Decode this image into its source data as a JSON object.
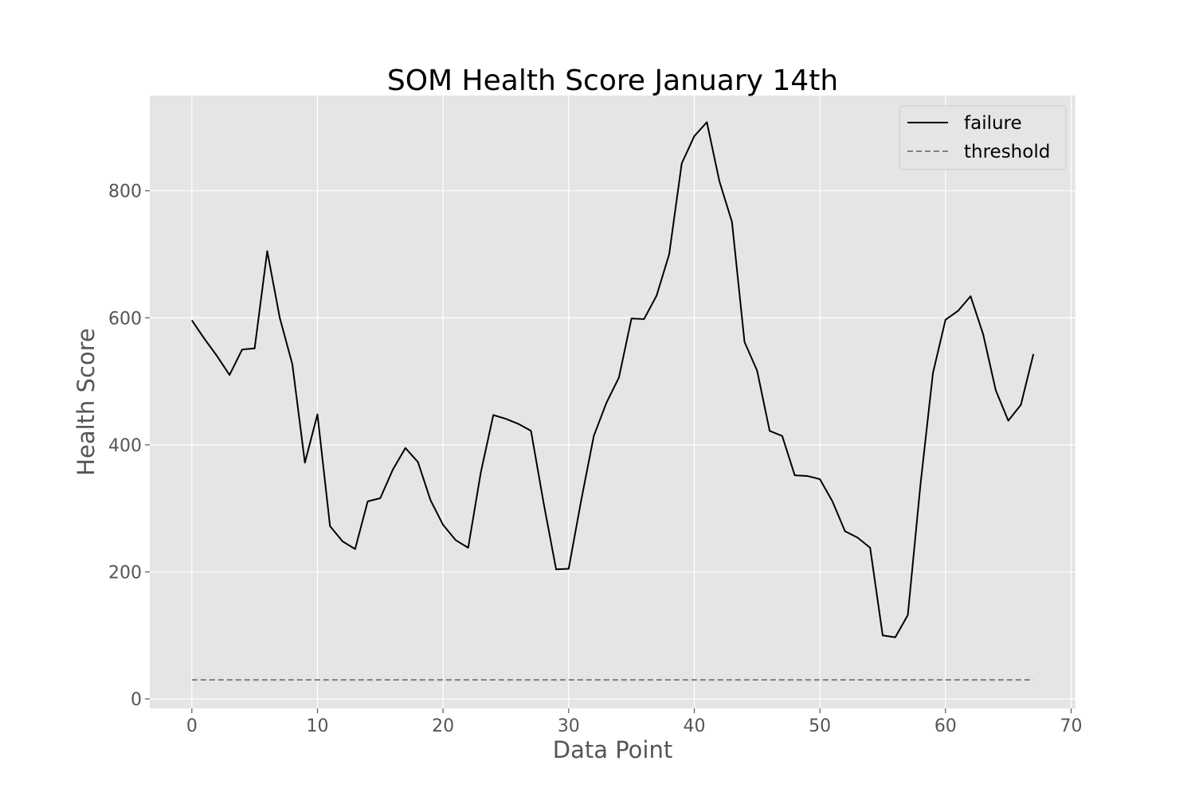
{
  "chart_data": {
    "type": "line",
    "title": "SOM Health Score January 14th",
    "xlabel": "Data Point",
    "ylabel": "Health Score",
    "xlim": [
      -3.35,
      70.35
    ],
    "ylim": [
      -15,
      950
    ],
    "xticks": [
      0,
      10,
      20,
      30,
      40,
      50,
      60,
      70
    ],
    "yticks": [
      0,
      200,
      400,
      600,
      800
    ],
    "grid": true,
    "legend_position": "top-right",
    "colors": {
      "background": "#e5e5e5",
      "grid": "#ffffff",
      "tick_text": "#555555"
    },
    "series": [
      {
        "name": "failure",
        "color": "#000000",
        "style": "solid",
        "x": [
          0,
          1,
          2,
          3,
          4,
          5,
          6,
          7,
          8,
          9,
          10,
          11,
          12,
          13,
          14,
          15,
          16,
          17,
          18,
          19,
          20,
          21,
          22,
          23,
          24,
          25,
          26,
          27,
          28,
          29,
          30,
          31,
          32,
          33,
          34,
          35,
          36,
          37,
          38,
          39,
          40,
          41,
          42,
          43,
          44,
          45,
          46,
          47,
          48,
          49,
          50,
          51,
          52,
          53,
          54,
          55,
          56,
          57,
          58,
          59,
          60,
          61,
          62,
          63,
          64,
          65,
          66,
          67
        ],
        "values": [
          596,
          567,
          540,
          510,
          550,
          552,
          705,
          600,
          527,
          372,
          448,
          272,
          248,
          236,
          311,
          316,
          361,
          395,
          373,
          313,
          274,
          250,
          238,
          356,
          447,
          441,
          433,
          422,
          309,
          204,
          205,
          313,
          414,
          466,
          506,
          599,
          598,
          635,
          700,
          843,
          886,
          908,
          815,
          751,
          562,
          517,
          422,
          414,
          352,
          351,
          346,
          311,
          264,
          254,
          238,
          100,
          97,
          132,
          336,
          513,
          597,
          611,
          634,
          574,
          486,
          438,
          463,
          543
        ]
      },
      {
        "name": "threshold",
        "color": "#7f7f7f",
        "style": "dashed",
        "x": [
          0,
          67
        ],
        "values": [
          30,
          30
        ]
      }
    ]
  }
}
